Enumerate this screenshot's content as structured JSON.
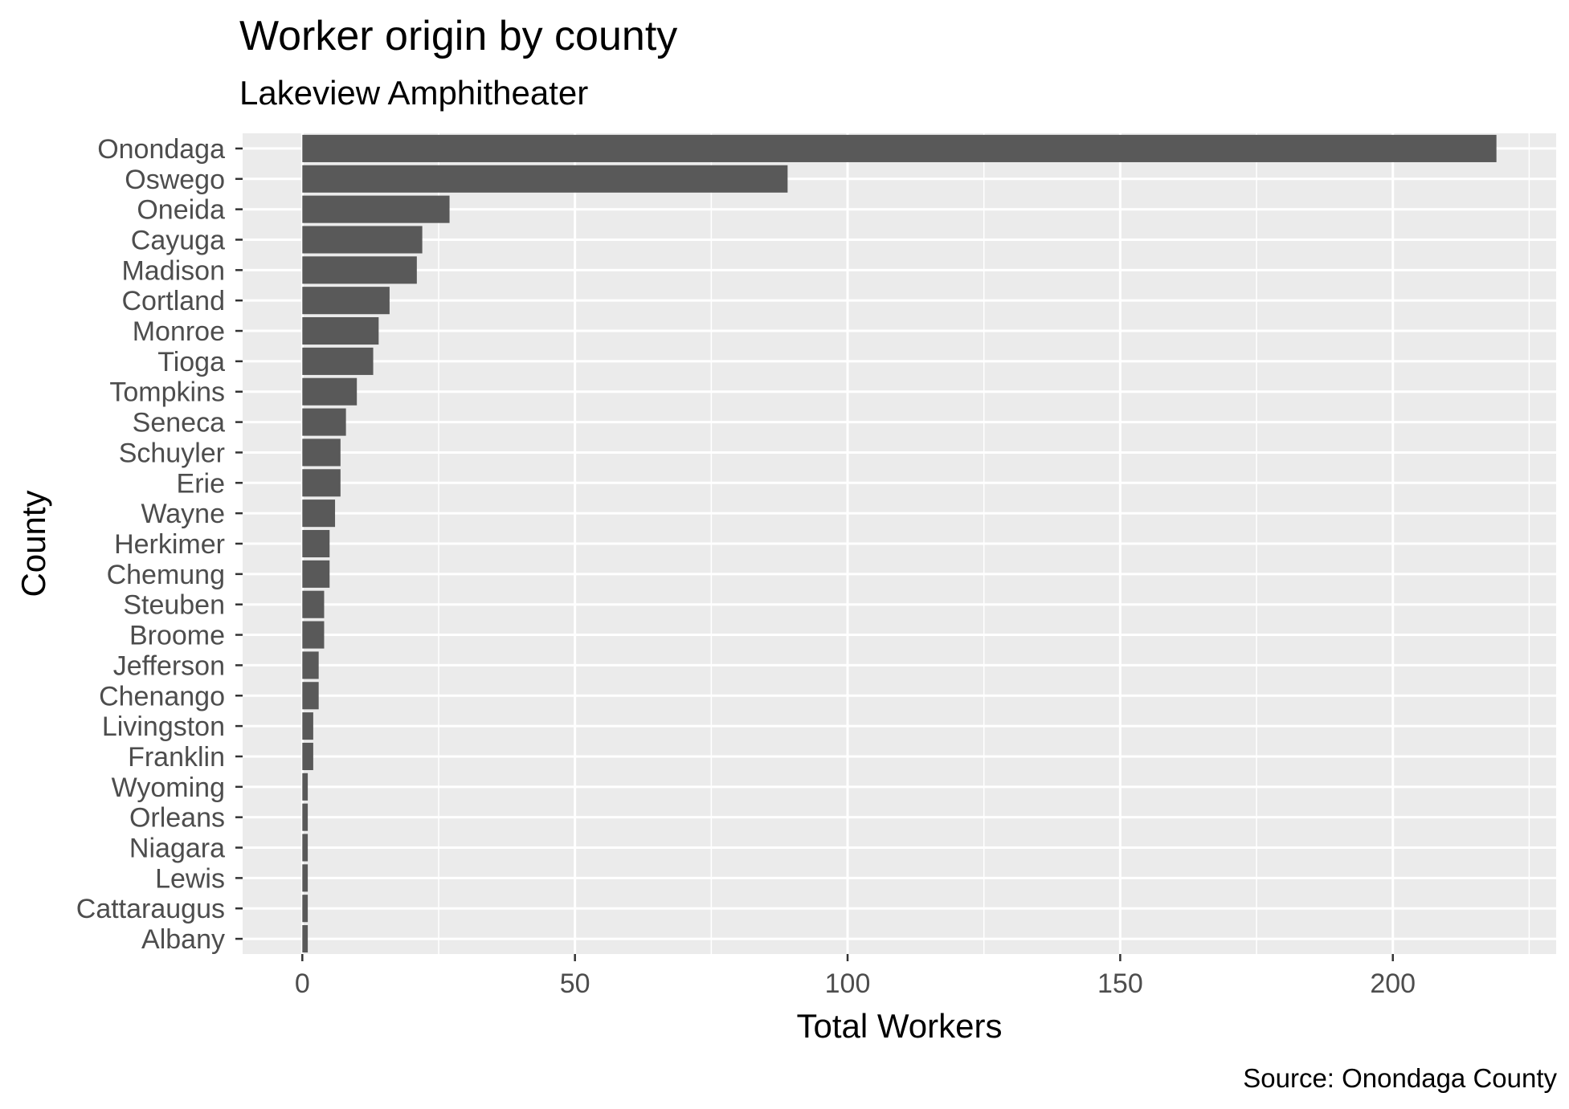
{
  "chart_data": {
    "type": "bar",
    "orientation": "horizontal",
    "title": "Worker origin by county",
    "subtitle": "Lakeview Amphitheater",
    "xlabel": "Total Workers",
    "ylabel": "County",
    "caption": "Source: Onondaga County",
    "categories": [
      "Onondaga",
      "Oswego",
      "Oneida",
      "Cayuga",
      "Madison",
      "Cortland",
      "Monroe",
      "Tioga",
      "Tompkins",
      "Seneca",
      "Schuyler",
      "Erie",
      "Wayne",
      "Herkimer",
      "Chemung",
      "Steuben",
      "Broome",
      "Jefferson",
      "Chenango",
      "Livingston",
      "Franklin",
      "Wyoming",
      "Orleans",
      "Niagara",
      "Lewis",
      "Cattaraugus",
      "Albany"
    ],
    "values": [
      219,
      89,
      27,
      22,
      21,
      16,
      14,
      13,
      10,
      8,
      7,
      7,
      6,
      5,
      5,
      4,
      4,
      3,
      3,
      2,
      2,
      1,
      1,
      1,
      1,
      1,
      1
    ],
    "xlim": [
      -10.95,
      229.95
    ],
    "x_ticks": [
      0,
      50,
      100,
      150,
      200
    ],
    "x_tick_labels": [
      "0",
      "50",
      "100",
      "150",
      "200"
    ],
    "grid": true,
    "bar_color": "#595959",
    "panel_color": "#ebebeb",
    "grid_color": "#ffffff"
  }
}
